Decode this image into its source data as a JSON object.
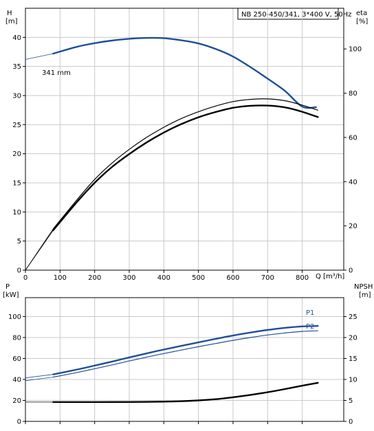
{
  "chart_data": [
    {
      "type": "line",
      "title": "NB 250-450/341, 3*400 V, 50Hz",
      "left_axis": {
        "label": "H",
        "unit": "[m]",
        "range": [
          0,
          45
        ],
        "ticks": [
          0,
          5,
          10,
          15,
          20,
          25,
          30,
          35,
          40
        ]
      },
      "right_axis": {
        "label": "eta",
        "unit": "[%]",
        "range": [
          0,
          118.4
        ],
        "ticks": [
          0,
          20,
          40,
          60,
          80,
          100
        ]
      },
      "x_axis": {
        "label": "Q [m³/h]",
        "range": [
          0,
          920
        ],
        "ticks": [
          0,
          100,
          200,
          300,
          400,
          500,
          600,
          700,
          800
        ]
      },
      "grid": true,
      "series": [
        {
          "name": "341 mm",
          "axis": "left",
          "color": "#1f4e96",
          "extension": [
            [
              0,
              36.2
            ],
            [
              80,
              37.2
            ]
          ],
          "values": [
            [
              80,
              37.2
            ],
            [
              150,
              38.4
            ],
            [
              200,
              39.0
            ],
            [
              250,
              39.45
            ],
            [
              300,
              39.75
            ],
            [
              350,
              39.9
            ],
            [
              400,
              39.85
            ],
            [
              450,
              39.5
            ],
            [
              500,
              38.95
            ],
            [
              550,
              38.0
            ],
            [
              600,
              36.7
            ],
            [
              650,
              34.9
            ],
            [
              700,
              32.9
            ],
            [
              750,
              30.8
            ],
            [
              800,
              28.1
            ],
            [
              840,
              28.0
            ]
          ]
        },
        {
          "name": "",
          "axis": "right",
          "color": "#000000",
          "style": "thick",
          "extension": [
            [
              0,
              0
            ],
            [
              80,
              18
            ]
          ],
          "values": [
            [
              80,
              18.0
            ],
            [
              150,
              31.0
            ],
            [
              200,
              39.5
            ],
            [
              250,
              46.6
            ],
            [
              300,
              52.5
            ],
            [
              350,
              57.7
            ],
            [
              400,
              62.2
            ],
            [
              450,
              66.0
            ],
            [
              500,
              69.1
            ],
            [
              550,
              71.5
            ],
            [
              600,
              73.4
            ],
            [
              650,
              74.3
            ],
            [
              700,
              74.4
            ],
            [
              750,
              73.6
            ],
            [
              800,
              71.6
            ],
            [
              845,
              69.2
            ]
          ]
        },
        {
          "name": "",
          "axis": "right",
          "color": "#000000",
          "style": "thin",
          "extension": [
            [
              0,
              0
            ],
            [
              80,
              18.6
            ]
          ],
          "values": [
            [
              80,
              18.6
            ],
            [
              150,
              32.0
            ],
            [
              200,
              41.0
            ],
            [
              250,
              48.4
            ],
            [
              300,
              54.6
            ],
            [
              350,
              60.0
            ],
            [
              400,
              64.6
            ],
            [
              450,
              68.5
            ],
            [
              500,
              71.6
            ],
            [
              550,
              74.2
            ],
            [
              600,
              76.2
            ],
            [
              650,
              77.2
            ],
            [
              700,
              77.4
            ],
            [
              750,
              76.6
            ],
            [
              800,
              74.6
            ],
            [
              845,
              72.3
            ]
          ]
        }
      ],
      "annotations": [
        "341 mm"
      ]
    },
    {
      "type": "line",
      "left_axis": {
        "label": "P",
        "unit": "[kW]",
        "range": [
          0,
          118
        ],
        "ticks": [
          0,
          20,
          40,
          60,
          80,
          100
        ]
      },
      "right_axis": {
        "label": "NPSH",
        "unit": "[m]",
        "range": [
          0,
          29.5
        ],
        "ticks": [
          0,
          5,
          10,
          15,
          20,
          25
        ]
      },
      "x_axis": {
        "range": [
          0,
          920
        ],
        "ticks": [
          0,
          100,
          200,
          300,
          400,
          500,
          600,
          700,
          800
        ]
      },
      "grid": true,
      "series": [
        {
          "name": "P1",
          "axis": "left",
          "color": "#1f4e96",
          "style": "thick",
          "extension": [
            [
              0,
              41.5
            ],
            [
              80,
              44.8
            ]
          ],
          "values": [
            [
              80,
              44.8
            ],
            [
              150,
              49.5
            ],
            [
              200,
              53.2
            ],
            [
              250,
              57.0
            ],
            [
              300,
              61.0
            ],
            [
              350,
              64.8
            ],
            [
              400,
              68.5
            ],
            [
              450,
              72.0
            ],
            [
              500,
              75.3
            ],
            [
              550,
              78.7
            ],
            [
              600,
              81.9
            ],
            [
              650,
              84.7
            ],
            [
              700,
              87.2
            ],
            [
              750,
              89.2
            ],
            [
              800,
              90.6
            ],
            [
              845,
              91.0
            ]
          ]
        },
        {
          "name": "P2",
          "axis": "left",
          "color": "#1f4e96",
          "style": "thin",
          "extension": [
            [
              0,
              38.8
            ],
            [
              80,
              42.2
            ]
          ],
          "values": [
            [
              80,
              42.2
            ],
            [
              150,
              46.7
            ],
            [
              200,
              50.2
            ],
            [
              250,
              53.8
            ],
            [
              300,
              57.6
            ],
            [
              350,
              61.2
            ],
            [
              400,
              64.7
            ],
            [
              450,
              68.0
            ],
            [
              500,
              71.2
            ],
            [
              550,
              74.3
            ],
            [
              600,
              77.3
            ],
            [
              650,
              80.0
            ],
            [
              700,
              82.4
            ],
            [
              750,
              84.3
            ],
            [
              800,
              85.8
            ],
            [
              845,
              86.4
            ]
          ]
        },
        {
          "name": "",
          "axis": "right",
          "color": "#000000",
          "style": "thick",
          "extension": [
            [
              0,
              4.6
            ],
            [
              80,
              4.6
            ]
          ],
          "values": [
            [
              80,
              4.6
            ],
            [
              150,
              4.6
            ],
            [
              200,
              4.6
            ],
            [
              300,
              4.62
            ],
            [
              400,
              4.7
            ],
            [
              450,
              4.8
            ],
            [
              500,
              5.0
            ],
            [
              550,
              5.3
            ],
            [
              600,
              5.75
            ],
            [
              650,
              6.3
            ],
            [
              700,
              6.95
            ],
            [
              750,
              7.7
            ],
            [
              800,
              8.5
            ],
            [
              845,
              9.2
            ]
          ]
        }
      ],
      "annotations": [
        "P1",
        "P2"
      ]
    }
  ]
}
